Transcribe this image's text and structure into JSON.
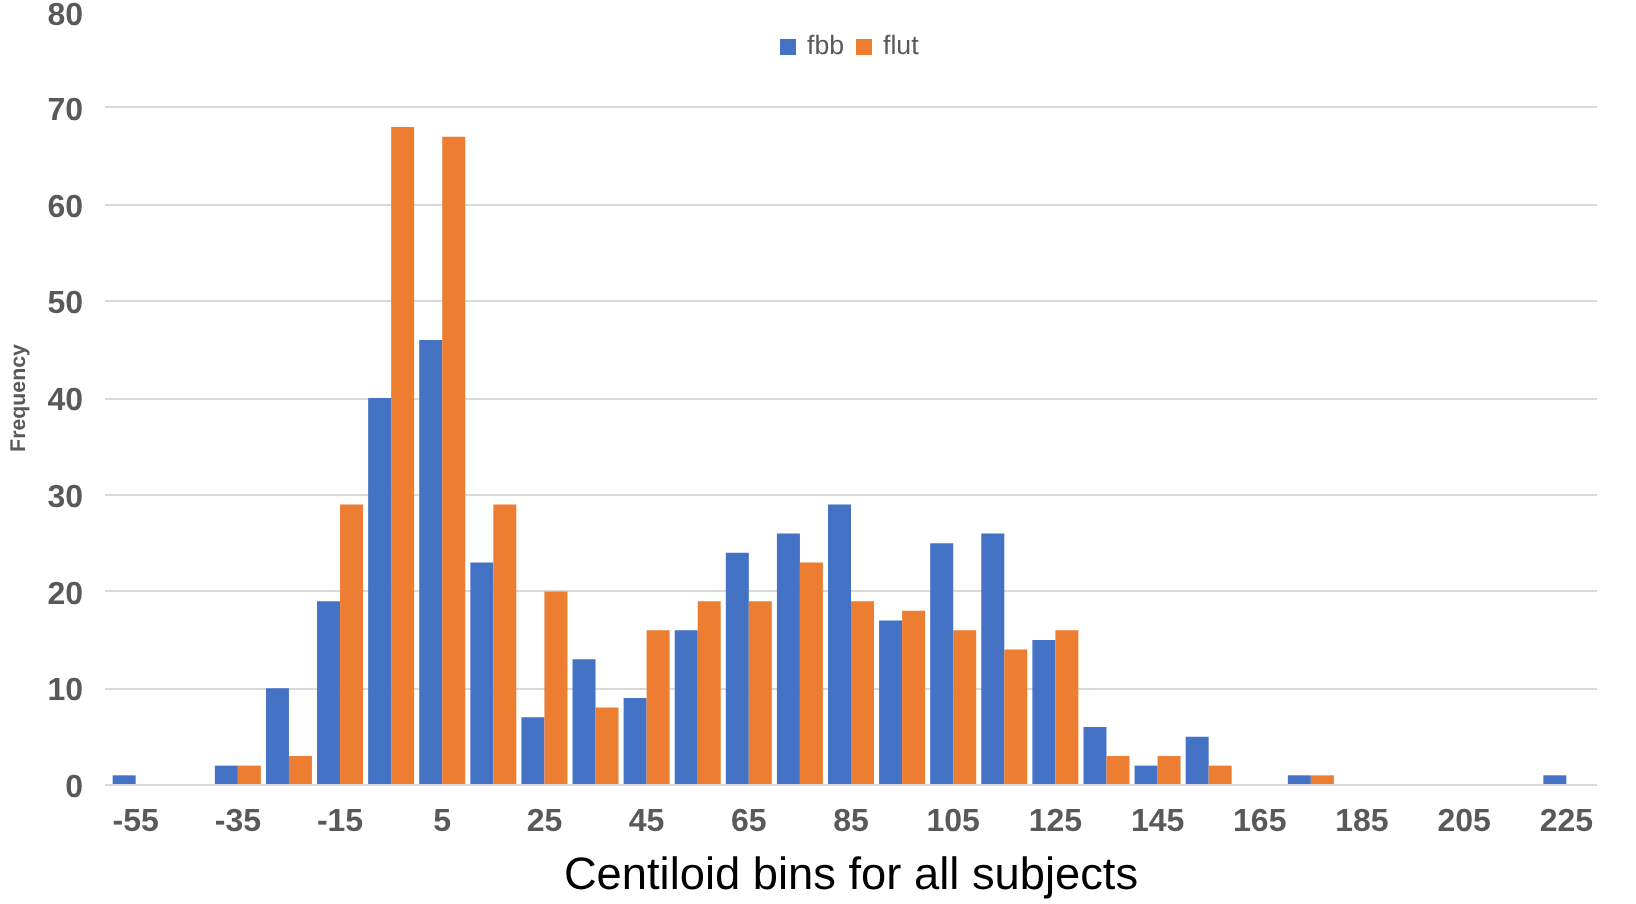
{
  "chart_data": {
    "type": "bar",
    "xlabel": "Centiloid bins for all subjects",
    "ylabel": "Frequency",
    "categories": [
      "-55",
      null,
      "-35",
      null,
      "-15",
      null,
      "5",
      null,
      "25",
      null,
      "45",
      null,
      "65",
      null,
      "85",
      null,
      "105",
      null,
      "125",
      null,
      "145",
      null,
      "165",
      null,
      "185",
      null,
      "205",
      null,
      "225"
    ],
    "series": [
      {
        "name": "fbb",
        "color": "#4472c4",
        "values": [
          1,
          0,
          2,
          10,
          19,
          40,
          46,
          23,
          7,
          13,
          9,
          16,
          24,
          26,
          29,
          17,
          25,
          26,
          15,
          6,
          2,
          5,
          0,
          1,
          0,
          0,
          0,
          0,
          1
        ]
      },
      {
        "name": "flut",
        "color": "#ed7d31",
        "values": [
          0,
          0,
          2,
          3,
          29,
          68,
          67,
          29,
          20,
          8,
          16,
          19,
          19,
          23,
          19,
          18,
          16,
          14,
          16,
          3,
          3,
          2,
          0,
          1,
          0,
          0,
          0,
          0,
          0
        ]
      }
    ],
    "ylim": [
      0,
      80
    ],
    "yticks": [
      0,
      10,
      20,
      30,
      40,
      50,
      60,
      70,
      80
    ],
    "grid": "y",
    "legend": "top"
  }
}
